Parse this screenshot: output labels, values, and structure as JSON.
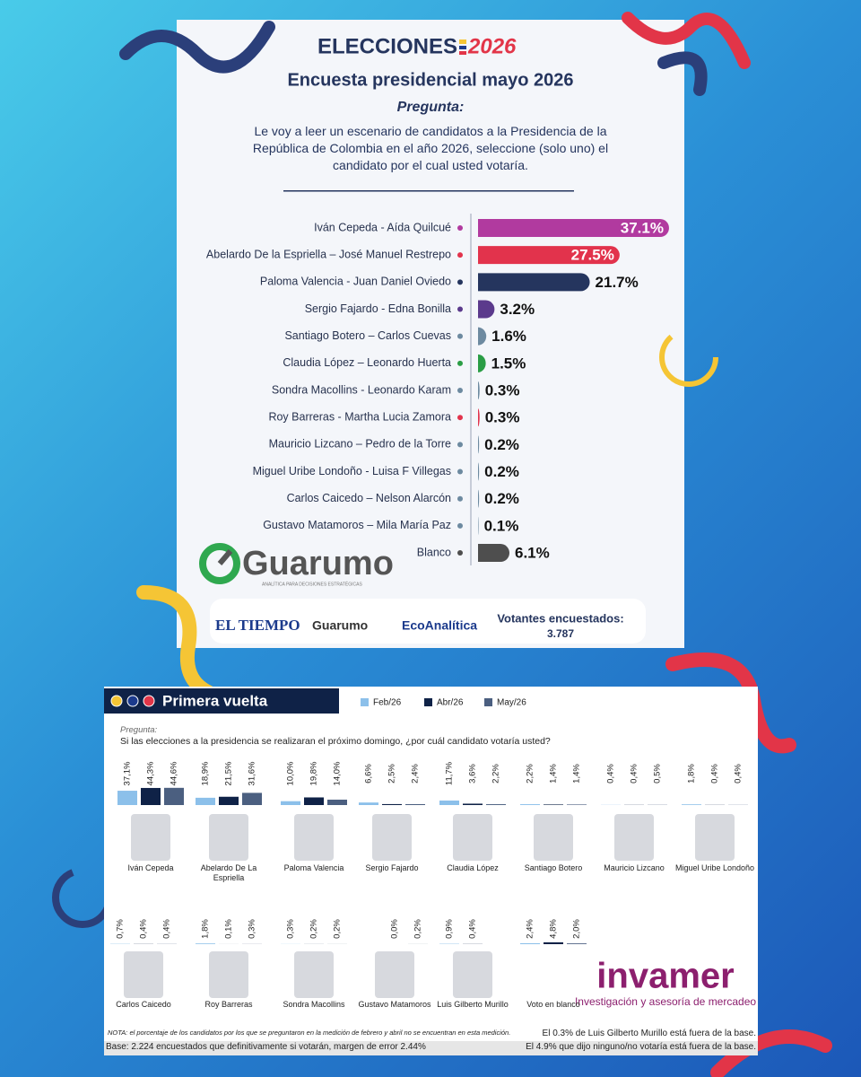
{
  "chart_data": [
    {
      "type": "hbar",
      "header": "ELECCIONES",
      "header_year": "2026",
      "title": "Encuesta presidencial mayo 2026",
      "question_label": "Pregunta:",
      "question": "Le voy a leer un escenario de candidatos a la Presidencia de la República de Colombia en el año 2026, seleccione (solo uno) el candidato por el cual usted votaría.",
      "categories": [
        "Iván Cepeda - Aída Quilcué",
        "Abelardo De la Espriella – José Manuel Restrepo",
        "Paloma Valencia - Juan Daniel Oviedo",
        "Sergio Fajardo - Edna Bonilla",
        "Santiago Botero – Carlos Cuevas",
        "Claudia López – Leonardo Huerta",
        "Sondra Macollins - Leonardo Karam",
        "Roy Barreras - Martha Lucia Zamora",
        "Mauricio Lizcano – Pedro de la Torre",
        "Miguel Uribe Londoño - Luisa F Villegas",
        "Carlos Caicedo – Nelson Alarcón",
        "Gustavo Matamoros – Mila María Paz",
        "Blanco"
      ],
      "values": [
        37.1,
        27.5,
        21.7,
        3.2,
        1.6,
        1.5,
        0.3,
        0.3,
        0.2,
        0.2,
        0.2,
        0.1,
        6.1
      ],
      "value_labels": [
        "37.1%",
        "27.5%",
        "21.7%",
        "3.2%",
        "1.6%",
        "1.5%",
        "0.3%",
        "0.3%",
        "0.2%",
        "0.2%",
        "0.2%",
        "0.1%",
        "6.1%"
      ],
      "colors": [
        "#b13a9f",
        "#e2334c",
        "#25355e",
        "#5b3a8c",
        "#6d8aa0",
        "#2a9d45",
        "#6d8aa0",
        "#e2334c",
        "#6d8aa0",
        "#6d8aa0",
        "#6d8aa0",
        "#6d8aa0",
        "#4e4e4e"
      ],
      "logo": "Guarumo",
      "logo_tagline": "ANALÍTICA PARA DECISIONES ESTRATÉGICAS",
      "sources": [
        "EL TIEMPO",
        "Guarumo",
        "EcoAnalítica"
      ],
      "sample_label": "Votantes encuestados:",
      "sample": "3.787"
    },
    {
      "type": "grouped-bar",
      "title": "Primera vuelta",
      "question_label": "Pregunta:",
      "question": "Si las elecciones a la presidencia se realizaran el próximo domingo, ¿por cuál candidato votaría usted?",
      "categories": [
        "Iván Cepeda",
        "Abelardo De La Espriella",
        "Paloma Valencia",
        "Sergio Fajardo",
        "Claudia López",
        "Santiago Botero",
        "Mauricio Lizcano",
        "Miguel Uribe Londoño",
        "Carlos Caicedo",
        "Roy Barreras",
        "Sondra Macollins",
        "Gustavo Matamoros",
        "Luis Gilberto Murillo",
        "Voto en blanco"
      ],
      "series": [
        {
          "name": "Feb/26",
          "color": "#8cc0ea",
          "values": [
            37.1,
            18.9,
            10.0,
            6.6,
            11.7,
            2.2,
            0.4,
            1.8,
            0.7,
            1.8,
            0.3,
            null,
            0.9,
            2.4
          ],
          "value_labels": [
            "37,1%",
            "18,9%",
            "10,0%",
            "6,6%",
            "11,7%",
            "2,2%",
            "0,4%",
            "1,8%",
            "0,7%",
            "1,8%",
            "0,3%",
            null,
            "0,9%",
            "2,4%"
          ]
        },
        {
          "name": "Abr/26",
          "color": "#0f2247",
          "values": [
            44.3,
            21.5,
            19.8,
            2.5,
            3.6,
            1.4,
            0.4,
            0.4,
            0.4,
            0.1,
            0.2,
            0.0,
            0.4,
            4.8
          ],
          "value_labels": [
            "44,3%",
            "21,5%",
            "19,8%",
            "2,5%",
            "3,6%",
            "1,4%",
            "0,4%",
            "0,4%",
            "0,4%",
            "0,1%",
            "0,2%",
            "0,0%",
            "0,4%",
            "4,8%"
          ]
        },
        {
          "name": "May/26",
          "color": "#4b5f80",
          "values": [
            44.6,
            31.6,
            14.0,
            2.4,
            2.2,
            1.4,
            0.5,
            0.4,
            0.4,
            0.3,
            0.2,
            0.2,
            null,
            2.0
          ],
          "value_labels": [
            "44,6%",
            "31,6%",
            "14,0%",
            "2,4%",
            "2,2%",
            "1,4%",
            "0,5%",
            "0,4%",
            "0,4%",
            "0,3%",
            "0,2%",
            "0,2%",
            null,
            "2,0%"
          ]
        }
      ],
      "brand": "invamer",
      "brand_tagline": "Investigación y asesoría de mercadeo",
      "notes": [
        "NOTA: el porcentaje de los candidatos por los que se preguntaron en la medición de febrero y abril no se encuentran en esta medición.",
        "Base: 2.224 encuestados que definitivamente si votarán, margen de error 2.44%",
        "El 0.3% de Luis Gilberto Murillo está fuera de la base.",
        "El 4.9% que dijo ninguno/no votaría está fuera de la base."
      ]
    }
  ]
}
